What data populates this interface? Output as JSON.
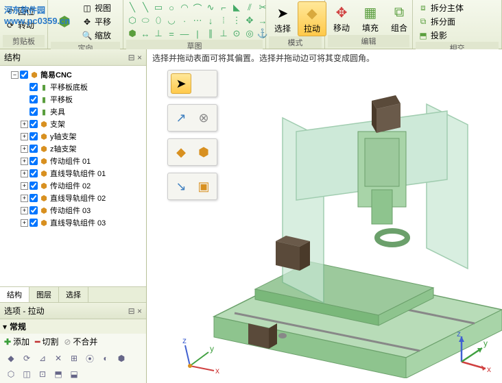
{
  "watermark": {
    "line1": "河东软件园",
    "line2": "www.pc0359.cn"
  },
  "ribbon": {
    "clipboard": {
      "label": "剪贴板",
      "return": "回位",
      "rotate": "转动"
    },
    "orient": {
      "label": "定向",
      "view": "视图",
      "move": "平移",
      "zoom": "缩放"
    },
    "sketch": {
      "label": "草图"
    },
    "mode": {
      "label": "模式",
      "select": "选择",
      "pull": "拉动"
    },
    "edit": {
      "label": "编辑",
      "move": "移动",
      "fill": "填充",
      "combine": "组合"
    },
    "intersect": {
      "label": "相交",
      "split_body": "拆分主体",
      "split_face": "拆分面",
      "project": "投影"
    }
  },
  "tree": {
    "header": "结构",
    "root": "简易CNC",
    "items": [
      {
        "label": "平移板底板",
        "icon": "part"
      },
      {
        "label": "平移板",
        "icon": "part"
      },
      {
        "label": "夹具",
        "icon": "part"
      },
      {
        "label": "支架",
        "icon": "assembly",
        "expandable": true
      },
      {
        "label": "y轴支架",
        "icon": "assembly",
        "expandable": true
      },
      {
        "label": "z轴支架",
        "icon": "assembly",
        "expandable": true
      },
      {
        "label": "传动组件 01",
        "icon": "assembly",
        "expandable": true
      },
      {
        "label": "直线导轨组件 01",
        "icon": "assembly",
        "expandable": true
      },
      {
        "label": "传动组件 02",
        "icon": "assembly",
        "expandable": true
      },
      {
        "label": "直线导轨组件 02",
        "icon": "assembly",
        "expandable": true
      },
      {
        "label": "传动组件 03",
        "icon": "assembly",
        "expandable": true
      },
      {
        "label": "直线导轨组件 03",
        "icon": "assembly",
        "expandable": true
      }
    ],
    "tabs": {
      "structure": "结构",
      "layers": "图层",
      "selection": "选择"
    }
  },
  "options": {
    "header": "选项 - 拉动",
    "general": "常规",
    "add": "添加",
    "cut": "切割",
    "nomerge": "不合并"
  },
  "viewport": {
    "hint": "选择并拖动表面可将其偏置。选择并拖动边可将其变成圆角。",
    "model_colors": {
      "base": "#9cc99c",
      "base_dark": "#6ba06b",
      "glass": "#b8e0c8",
      "glass_edge": "#7ab890",
      "motor": "#8a7560",
      "motor_dark": "#5a4a3a",
      "metal": "#c8c8c0",
      "rail": "#888"
    },
    "axes": {
      "x": "#d04040",
      "y": "#40a040",
      "z": "#4060d0",
      "labels": [
        "x",
        "y",
        "z"
      ]
    }
  }
}
